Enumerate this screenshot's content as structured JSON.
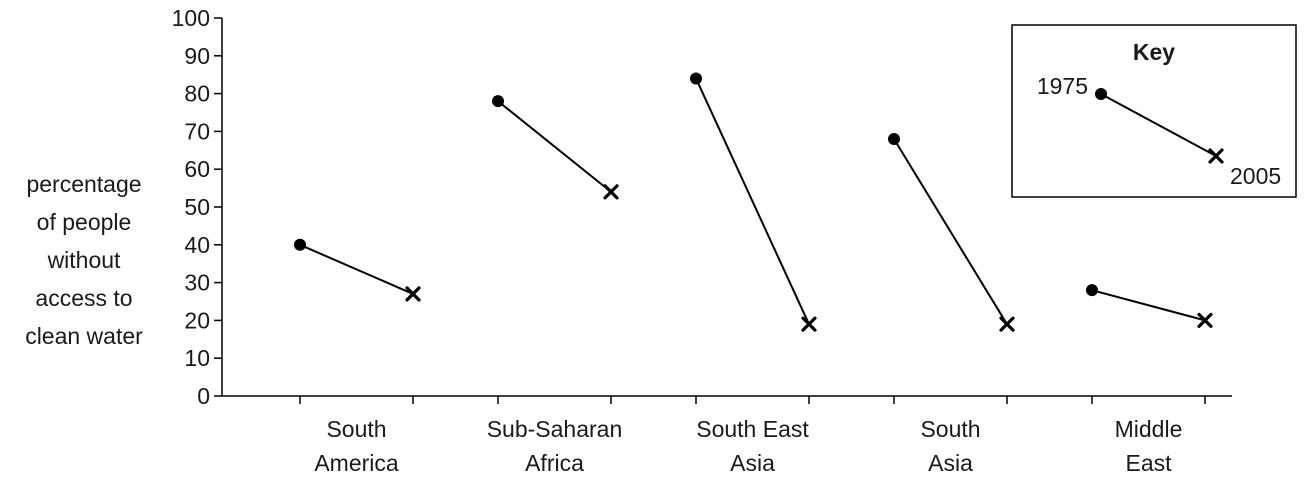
{
  "chart_data": {
    "type": "line",
    "title": "",
    "ylabel_lines": [
      "percentage",
      "of people",
      "without",
      "access to",
      "clean water"
    ],
    "xlabel": "",
    "ylim": [
      0,
      100
    ],
    "yticks": [
      0,
      10,
      20,
      30,
      40,
      50,
      60,
      70,
      80,
      90,
      100
    ],
    "grid": false,
    "categories": [
      {
        "lines": [
          "South",
          "America"
        ]
      },
      {
        "lines": [
          "Sub-Saharan",
          "Africa"
        ]
      },
      {
        "lines": [
          "South East",
          "Asia"
        ]
      },
      {
        "lines": [
          "South",
          "Asia"
        ]
      },
      {
        "lines": [
          "Middle",
          "East"
        ]
      }
    ],
    "series": [
      {
        "name": "1975",
        "marker": "circle",
        "values": [
          40,
          78,
          84,
          68,
          28
        ]
      },
      {
        "name": "2005",
        "marker": "cross",
        "values": [
          27,
          54,
          19,
          19,
          20
        ]
      }
    ],
    "legend": {
      "title": "Key",
      "placement": "top-right",
      "start_label": "1975",
      "end_label": "2005"
    }
  }
}
